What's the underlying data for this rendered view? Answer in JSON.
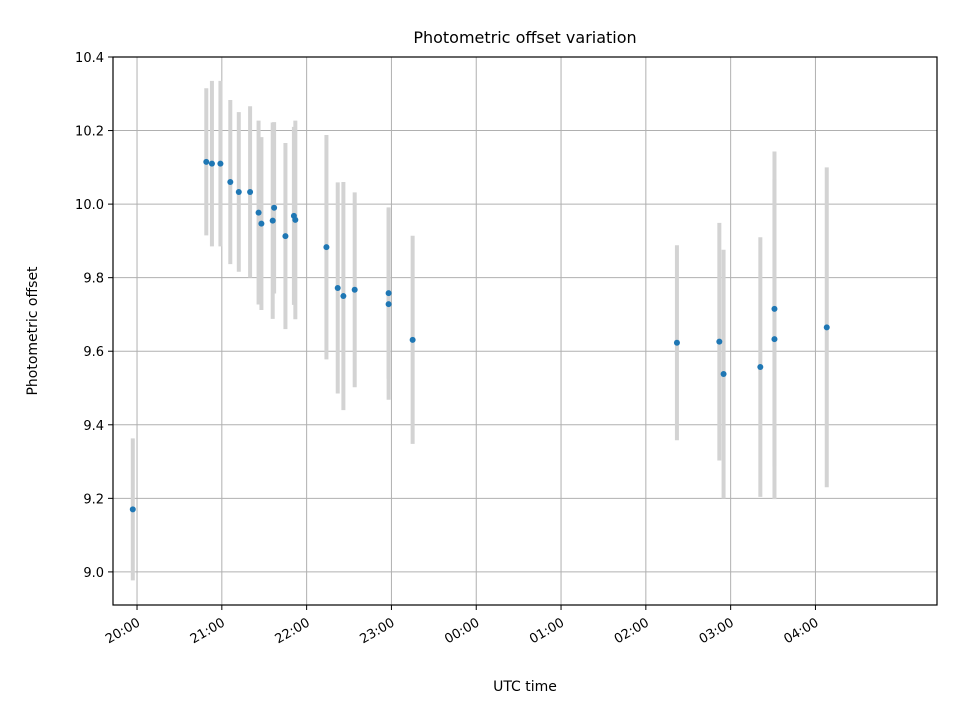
{
  "chart_data": {
    "type": "scatter",
    "title": "Photometric offset variation",
    "xlabel": "UTC time",
    "ylabel": "Photometric offset",
    "x_tick_labels": [
      "20:00",
      "21:00",
      "22:00",
      "23:00",
      "00:00",
      "01:00",
      "02:00",
      "03:00",
      "04:00"
    ],
    "y_tick_labels": [
      "9.0",
      "9.2",
      "9.4",
      "9.6",
      "9.8",
      "10.0",
      "10.2",
      "10.4"
    ],
    "x_ticks": [
      "20:00",
      "21:00",
      "22:00",
      "23:00",
      "24:00",
      "25:00",
      "26:00",
      "27:00",
      "28:00"
    ],
    "y_ticks": [
      9.0,
      9.2,
      9.4,
      9.6,
      9.8,
      10.0,
      10.2,
      10.4
    ],
    "xlim": [
      "19:43",
      "29:26"
    ],
    "ylim": [
      8.91,
      10.4
    ],
    "grid": true,
    "marker_color": "#1f77b4",
    "errorbar_color": "#d3d3d3",
    "points": [
      {
        "x": "19:57",
        "y": 9.17,
        "err": 0.193
      },
      {
        "x": "20:49",
        "y": 10.115,
        "err": 0.2
      },
      {
        "x": "20:53",
        "y": 10.11,
        "err": 0.225
      },
      {
        "x": "20:59",
        "y": 10.11,
        "err": 0.225
      },
      {
        "x": "21:06",
        "y": 10.06,
        "err": 0.223
      },
      {
        "x": "21:12",
        "y": 10.033,
        "err": 0.217
      },
      {
        "x": "21:20",
        "y": 10.033,
        "err": 0.233
      },
      {
        "x": "21:26",
        "y": 9.977,
        "err": 0.25
      },
      {
        "x": "21:28",
        "y": 9.947,
        "err": 0.235
      },
      {
        "x": "21:36",
        "y": 9.955,
        "err": 0.267
      },
      {
        "x": "21:37",
        "y": 9.99,
        "err": 0.233
      },
      {
        "x": "21:45",
        "y": 9.913,
        "err": 0.253
      },
      {
        "x": "21:51",
        "y": 9.968,
        "err": 0.242
      },
      {
        "x": "21:52",
        "y": 9.957,
        "err": 0.27
      },
      {
        "x": "22:14",
        "y": 9.883,
        "err": 0.305
      },
      {
        "x": "22:22",
        "y": 9.772,
        "err": 0.287
      },
      {
        "x": "22:26",
        "y": 9.75,
        "err": 0.31
      },
      {
        "x": "22:34",
        "y": 9.767,
        "err": 0.265
      },
      {
        "x": "22:58",
        "y": 9.758,
        "err": 0.233
      },
      {
        "x": "22:58",
        "y": 9.728,
        "err": 0.26
      },
      {
        "x": "23:15",
        "y": 9.631,
        "err": 0.283
      },
      {
        "x": "26:22",
        "y": 9.623,
        "err": 0.265
      },
      {
        "x": "26:52",
        "y": 9.626,
        "err": 0.323
      },
      {
        "x": "26:55",
        "y": 9.538,
        "err": 0.338
      },
      {
        "x": "27:21",
        "y": 9.557,
        "err": 0.353
      },
      {
        "x": "27:31",
        "y": 9.633,
        "err": 0.435
      },
      {
        "x": "27:31",
        "y": 9.715,
        "err": 0.428
      },
      {
        "x": "28:08",
        "y": 9.665,
        "err": 0.435
      }
    ]
  }
}
